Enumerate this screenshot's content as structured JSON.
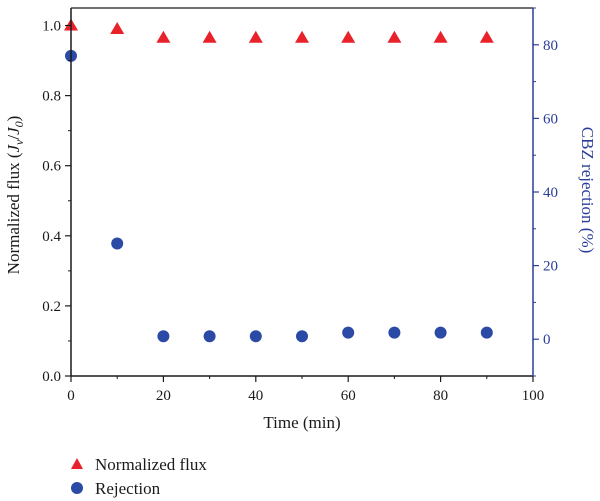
{
  "chart_data": {
    "type": "scatter",
    "xlabel": "Time (min)",
    "ylabel_left": {
      "prefix": "Normalized flux (",
      "j1": "J",
      "s1": "v",
      "sep": "/",
      "j2": "J",
      "s2": "0",
      "suffix": ")"
    },
    "ylabel_right": "CBZ rejection (%)",
    "xlim": [
      0,
      100
    ],
    "ylim_left": [
      0,
      1.05
    ],
    "ylim_right": [
      -10,
      90
    ],
    "x_ticks": [
      "0",
      "20",
      "40",
      "60",
      "80",
      "100"
    ],
    "y_left_ticks": [
      "0.0",
      "0.2",
      "0.4",
      "0.6",
      "0.8",
      "1.0"
    ],
    "y_right_ticks": [
      "0",
      "20",
      "40",
      "60",
      "80"
    ],
    "grid": false,
    "legend_position": "bottom-left",
    "series": [
      {
        "name": "Normalized flux",
        "axis": "left",
        "marker": "triangle",
        "color": "#e8212a",
        "x": [
          0,
          10,
          20,
          30,
          40,
          50,
          60,
          70,
          80,
          90
        ],
        "y": [
          1.0,
          0.99,
          0.965,
          0.965,
          0.965,
          0.965,
          0.965,
          0.965,
          0.965,
          0.965
        ]
      },
      {
        "name": "Rejection",
        "axis": "right",
        "marker": "circle",
        "color": "#2b4aa6",
        "x": [
          0,
          10,
          20,
          30,
          40,
          50,
          60,
          70,
          80,
          90
        ],
        "y": [
          77,
          26,
          0.8,
          0.8,
          0.8,
          0.8,
          1.8,
          1.8,
          1.8,
          1.8
        ]
      }
    ]
  }
}
